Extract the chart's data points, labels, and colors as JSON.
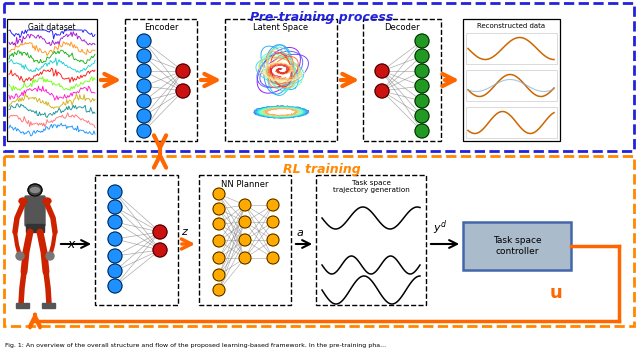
{
  "fig_width": 6.4,
  "fig_height": 3.51,
  "dpi": 100,
  "bg_color": "#ffffff",
  "top_box_color": "#2222dd",
  "bottom_box_color": "#ff8800",
  "top_title": "Pre-training process",
  "bottom_title": "RL training",
  "top_title_color": "#2222dd",
  "bottom_title_color": "#ff8800",
  "caption": "Fig. 1: An overview of the overall structure and flow of the proposed learning-based framework. In the pre-training pha...",
  "arrow_color": "#ff6600",
  "blue_node": "#1e90ff",
  "red_node": "#cc1111",
  "green_node": "#229922",
  "orange_node": "#ffaa00",
  "ctrl_face": "#aabbcc",
  "ctrl_edge": "#4466aa",
  "gait_colors": [
    "#0000ff",
    "#9900cc",
    "#ff8800",
    "#00aa00",
    "#00cccc",
    "#ff0000",
    "#66ff00",
    "#ff00cc",
    "#ccaa00",
    "#008888",
    "#ff6666",
    "#0088ff"
  ]
}
